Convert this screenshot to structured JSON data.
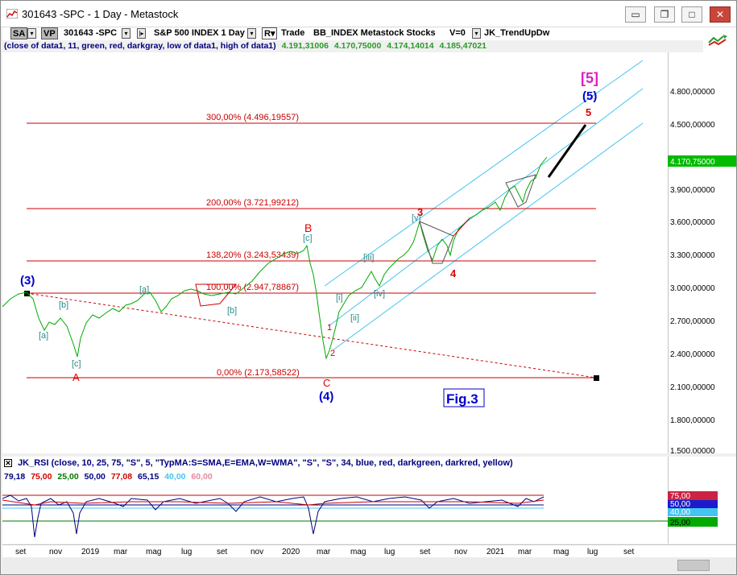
{
  "window": {
    "title": "301643 -SPC - 1 Day - Metastock",
    "minimize_label": "▭",
    "restore_label": "▭",
    "close_label": "✕"
  },
  "toolbar": {
    "sa_label": "SA",
    "vp_label": "VP",
    "symbol": "301643 -SPC",
    "index_label": "S&P 500 INDEX  1 Day",
    "r_label": "R",
    "trade_label": "Trade",
    "source": "BB_INDEX  Metastock  Stocks",
    "version": "V=0",
    "indicator_name": "JK_TrendUpDw"
  },
  "indicator_line": {
    "params": "(close of data1,  11,  green,  red,  darkgray,  low of data1,  high of data1)",
    "v1": "4.191,31006",
    "v2": "4.170,75000",
    "v3": "4.174,14014",
    "v4": "4.185,47021"
  },
  "price_axis": {
    "ticks": [
      "4.800,00000",
      "4.500,00000",
      "4.170,75000",
      "3.900,00000",
      "3.600,00000",
      "3.300,00000",
      "3.000,00000",
      "2.700,00000",
      "2.400,00000",
      "2.100,00000",
      "1.800,00000",
      "1.500,00000"
    ],
    "last_price": "4.170,75000"
  },
  "fib_levels": [
    {
      "label": "300,00% (4.496,19557)"
    },
    {
      "label": "200,00% (3.721,99212)"
    },
    {
      "label": "138,20% (3.243,53439)"
    },
    {
      "label": "100,00% (2.947,78867)"
    },
    {
      "label": "0,00% (2.173,58522)"
    }
  ],
  "wave_labels": {
    "big5": "[5]",
    "paren5": "(5)",
    "five": "5",
    "three": "3",
    "four": "4",
    "paren3": "(3)",
    "paren4": "(4)",
    "A": "A",
    "B": "B",
    "C": "C",
    "one": "1",
    "two": "2",
    "a1": "[a]",
    "b1": "[b]",
    "c1": "[c]",
    "a2": "[a]",
    "b2": "[b]",
    "c2": "[c]",
    "i": "[i]",
    "ii": "[ii]",
    "iii": "[iii]",
    "iv": "[iv]",
    "v": "[v]"
  },
  "fig_label": "Fig.3",
  "rsi": {
    "header": "JK_RSI   (close,  10,  25,  75,  \"S\",  5,  \"TypMA:S=SMA,E=EMA,W=WMA\",  \"S\",  \"S\",  34,  blue,  red,  darkgreen,  darkred,  yellow)",
    "v1": "79,18",
    "v2": "75,00",
    "v3": "25,00",
    "v4": "50,00",
    "v5": "77,08",
    "v6": "65,15",
    "v7": "40,00",
    "v8": "60,00",
    "axis_tags": [
      "75,00",
      "50,00",
      "40,00",
      "25,00"
    ]
  },
  "time_axis": [
    "set",
    "nov",
    "2019",
    "mar",
    "mag",
    "lug",
    "set",
    "nov",
    "2020",
    "mar",
    "mag",
    "lug",
    "set",
    "nov",
    "2021",
    "mar",
    "mag",
    "lug",
    "set"
  ],
  "colors": {
    "price": "#00aa00",
    "fib": "#cc0000",
    "channel": "#44c4f0",
    "wave_red": "#dd0000",
    "wave_blue": "#0000cc",
    "wave_teal": "#2a8a8a",
    "magenta": "#e020c0"
  }
}
